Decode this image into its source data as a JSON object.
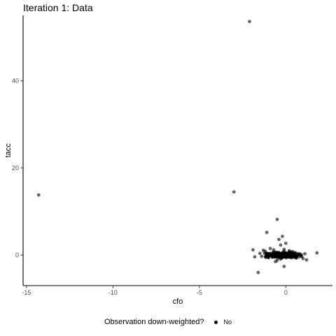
{
  "title": "Iteration 1: Data",
  "legend": {
    "title": "Observation down-weighted?",
    "items": [
      {
        "label": "No",
        "color": "#000000"
      }
    ]
  },
  "colors": {
    "point": "#000000",
    "axis": "#000000"
  },
  "chart_data": {
    "type": "scatter",
    "title": "Iteration 1: Data",
    "xlabel": "cfo",
    "ylabel": "tacc",
    "xlim": [
      -15.2,
      2.7
    ],
    "ylim": [
      -7,
      55
    ],
    "xticks": [
      -15,
      -10,
      -5,
      0
    ],
    "yticks": [
      0,
      20,
      40
    ],
    "grid": false,
    "legend_position": "bottom",
    "series": [
      {
        "name": "No",
        "x": [
          -2.1,
          -14.3,
          -3.0,
          -0.5,
          -1.1,
          -0.2,
          -0.4,
          -1.6,
          -0.1,
          1.8,
          -1.2,
          -0.9,
          -0.7,
          -0.3,
          0.0,
          -1.5,
          -1.8,
          0.3,
          0.5,
          0.8,
          1.0,
          1.2,
          -0.6,
          -0.8,
          -0.2,
          0.1,
          0.2,
          -0.4,
          -1.0,
          -1.3,
          -0.5,
          0.4,
          0.6,
          -0.1,
          -0.9,
          -0.3,
          0.0,
          0.2,
          -0.6,
          -1.4,
          0.9,
          -0.7,
          -0.2,
          0.1,
          -1.9,
          1.1,
          -0.4,
          0.3,
          -0.8,
          -0.1
        ],
        "y": [
          53.6,
          13.8,
          14.5,
          8.2,
          5.2,
          4.3,
          3.6,
          -4.0,
          -2.6,
          0.5,
          0.9,
          1.5,
          1.2,
          2.3,
          2.7,
          0.4,
          -0.4,
          0.6,
          -0.5,
          0.3,
          -0.8,
          -1.1,
          0.1,
          -0.2,
          0.0,
          0.2,
          -0.3,
          0.5,
          -0.6,
          1.1,
          -1.2,
          0.8,
          -0.7,
          1.3,
          0.2,
          -0.9,
          0.4,
          1.0,
          -1.5,
          -0.3,
          0.1,
          0.7,
          -0.5,
          -0.1,
          1.2,
          0.3,
          0.6,
          -0.4,
          -0.2,
          0.9
        ]
      }
    ]
  }
}
